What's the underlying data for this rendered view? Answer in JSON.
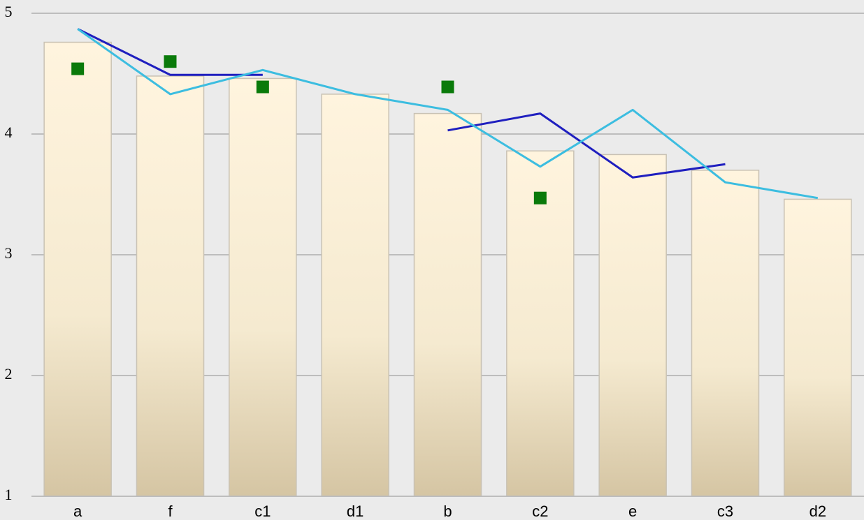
{
  "chart_data": {
    "type": "bar",
    "categories": [
      "a",
      "f",
      "c1",
      "d1",
      "b",
      "c2",
      "e",
      "c3",
      "d2"
    ],
    "ylim": [
      1,
      5
    ],
    "yticks": [
      1,
      2,
      3,
      4,
      5
    ],
    "grid": true,
    "series": [
      {
        "type": "bar",
        "color": "#fff3dc",
        "values": [
          4.76,
          4.48,
          4.46,
          4.33,
          4.17,
          3.86,
          3.83,
          3.7,
          3.46
        ]
      },
      {
        "type": "line",
        "color": "#1f1fbf",
        "values": [
          4.87,
          4.49,
          4.49,
          null,
          4.03,
          4.17,
          3.64,
          3.75,
          null
        ]
      },
      {
        "type": "line",
        "color": "#3cbde0",
        "values": [
          4.87,
          4.33,
          4.53,
          4.33,
          4.2,
          3.73,
          4.2,
          3.6,
          3.47
        ]
      },
      {
        "type": "scatter",
        "color": "#0a7a0a",
        "values": [
          4.54,
          4.6,
          4.39,
          null,
          4.39,
          3.47,
          null,
          null,
          null
        ]
      }
    ]
  }
}
